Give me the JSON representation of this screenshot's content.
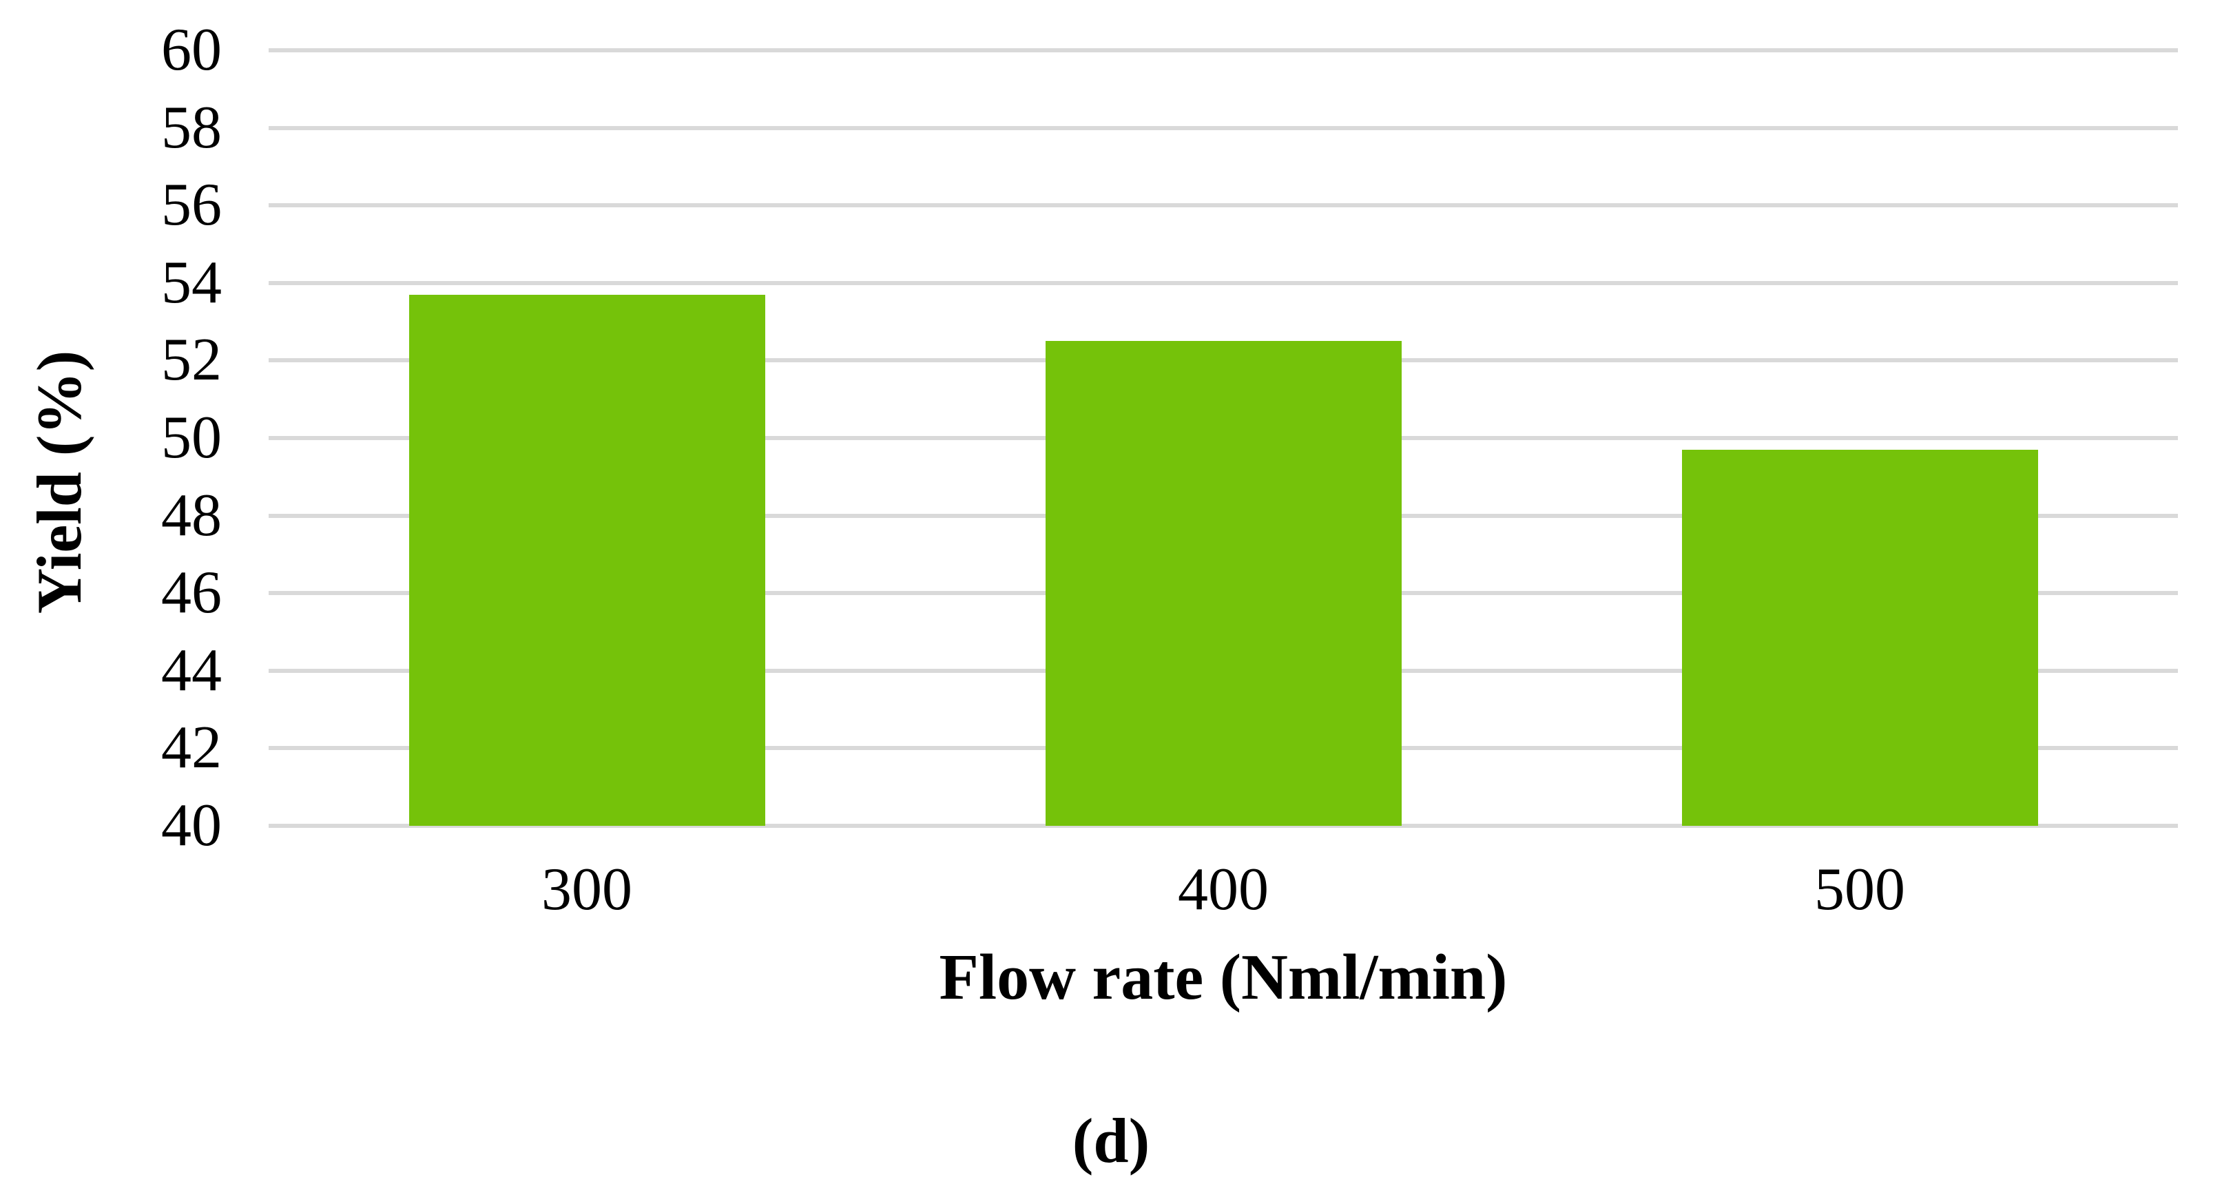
{
  "chart_data": {
    "type": "bar",
    "title": "",
    "categories": [
      "300",
      "400",
      "500"
    ],
    "values": [
      53.7,
      52.5,
      49.7
    ],
    "xlabel": "Flow rate (Nml/min)",
    "ylabel": "Yield (%)",
    "ylim": [
      40,
      60
    ],
    "ytick_step": 2,
    "ytick_labels": [
      "60",
      "58",
      "56",
      "54",
      "52",
      "50",
      "48",
      "46",
      "44",
      "42",
      "40"
    ],
    "grid": "horizontal",
    "legend": "none",
    "bar_color": "#75C20A",
    "gridline_color": "#D9D9D9",
    "text_color": "#000000",
    "caption": "(d)"
  }
}
